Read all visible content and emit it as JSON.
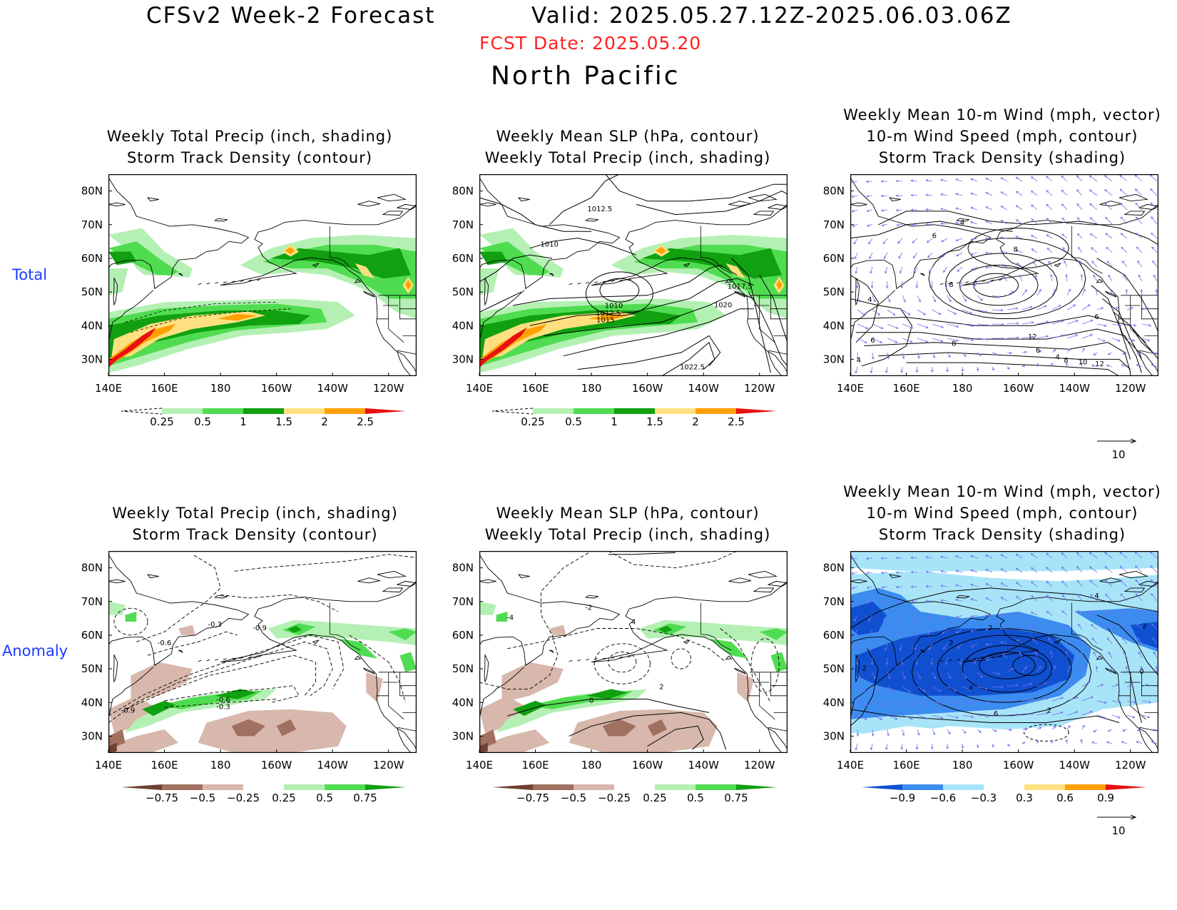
{
  "header": {
    "title": "CFSv2 Week-2 Forecast",
    "valid": "Valid: 2025.05.27.12Z-2025.06.03.06Z",
    "fcst_date": "FCST Date: 2025.05.20",
    "region": "North Pacific"
  },
  "rows": {
    "total": "Total",
    "anomaly": "Anomaly"
  },
  "panels": [
    {
      "id": "p1",
      "title": [
        "Weekly Total Precip (inch, shading)",
        "Storm Track Density (contour)"
      ]
    },
    {
      "id": "p2",
      "title": [
        "Weekly Mean SLP (hPa, contour)",
        "Weekly Total Precip (inch, shading)"
      ]
    },
    {
      "id": "p3",
      "title": [
        "Weekly Mean 10-m Wind (mph, vector)",
        "10-m Wind Speed (mph, contour)",
        "Storm Track Density (shading)"
      ]
    },
    {
      "id": "p4",
      "title": [
        "Weekly Total Precip (inch, shading)",
        "Storm Track Density (contour)"
      ]
    },
    {
      "id": "p5",
      "title": [
        "Weekly Mean SLP (hPa, contour)",
        "Weekly Total Precip (inch, shading)"
      ]
    },
    {
      "id": "p6",
      "title": [
        "Weekly Mean 10-m Wind (mph, vector)",
        "10-m Wind Speed (mph, contour)",
        "Storm Track Density (shading)"
      ]
    }
  ],
  "axes": {
    "x_ticks": [
      "140E",
      "160E",
      "180",
      "160W",
      "140W",
      "120W"
    ],
    "y_ticks": [
      "80N",
      "70N",
      "60N",
      "50N",
      "40N",
      "30N"
    ],
    "lon_range": [
      140,
      250
    ],
    "lat_range": [
      25,
      85
    ]
  },
  "colorbars": {
    "precip_total": {
      "labels": [
        "0.25",
        "0.5",
        "1",
        "1.5",
        "2",
        "2.5"
      ],
      "colors": [
        "#ffffff",
        "#b4f0b4",
        "#50dc50",
        "#10a010",
        "#ffe080",
        "#ffa000",
        "#e81010"
      ]
    },
    "precip_anom": {
      "labels": [
        "−0.75",
        "−0.5",
        "−0.25",
        "0.25",
        "0.5",
        "0.75"
      ],
      "colors": [
        "#6e4030",
        "#a07060",
        "#d8b8ac",
        "#ffffff",
        "#b4f0b4",
        "#50dc50",
        "#10a010"
      ]
    },
    "storm_anom": {
      "labels": [
        "−0.9",
        "−0.6",
        "−0.3",
        "0.3",
        "0.6",
        "0.9"
      ],
      "colors": [
        "#1050d0",
        "#3c8cf0",
        "#a8e4f8",
        "#ffffff",
        "#ffe080",
        "#ffa000",
        "#e81010"
      ]
    }
  },
  "vector_ref": "10",
  "contour_labels": {
    "p2": [
      "1012.5",
      "1010",
      "1010",
      "1012.5",
      "1015",
      "1017.5",
      "1020",
      "1022.5"
    ],
    "p3": [
      "4",
      "6",
      "4",
      "6",
      "8",
      "8",
      "6",
      "4",
      "12",
      "8",
      "6",
      "4",
      "8",
      "10",
      "12"
    ],
    "p4": [
      "-0.3",
      "-0.6",
      "-0.9",
      "-0.6",
      "-0.3",
      "-0.9"
    ],
    "p5": [
      "-4",
      "4",
      "-2",
      "0",
      "2"
    ],
    "p6": [
      "4",
      "2",
      "2",
      "2",
      "4",
      "2",
      "6",
      "2",
      "0"
    ]
  },
  "colors": {
    "land_line": "#000000",
    "vector": "#7070ee",
    "fcst_date": "#ff2020",
    "row_label": "#1a3cff"
  }
}
